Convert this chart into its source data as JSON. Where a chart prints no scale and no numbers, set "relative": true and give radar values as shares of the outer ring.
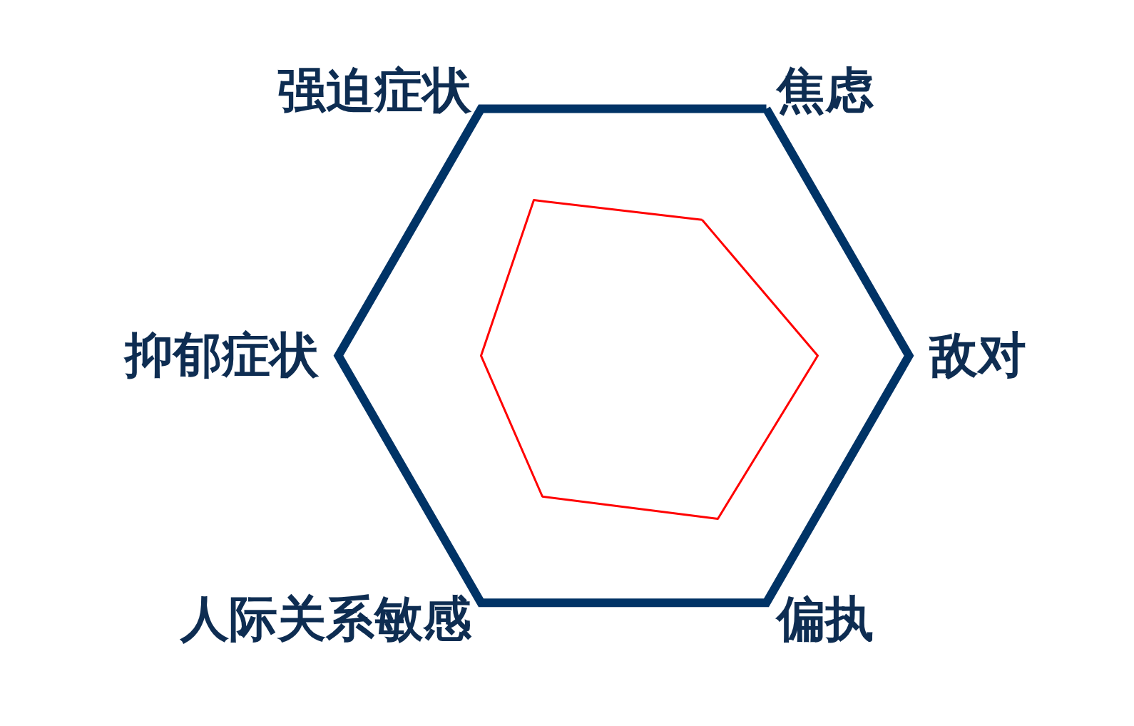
{
  "chart_data": {
    "type": "radar",
    "relative": true,
    "marker": "none",
    "categories": [
      "焦虑",
      "敌对",
      "偏执",
      "人际关系敏感",
      "抑郁症状",
      "强迫症状"
    ],
    "series": [
      {
        "color": "#ff0000",
        "values": [
          0.55,
          0.68,
          0.66,
          0.57,
          0.5,
          0.63
        ]
      }
    ]
  }
}
